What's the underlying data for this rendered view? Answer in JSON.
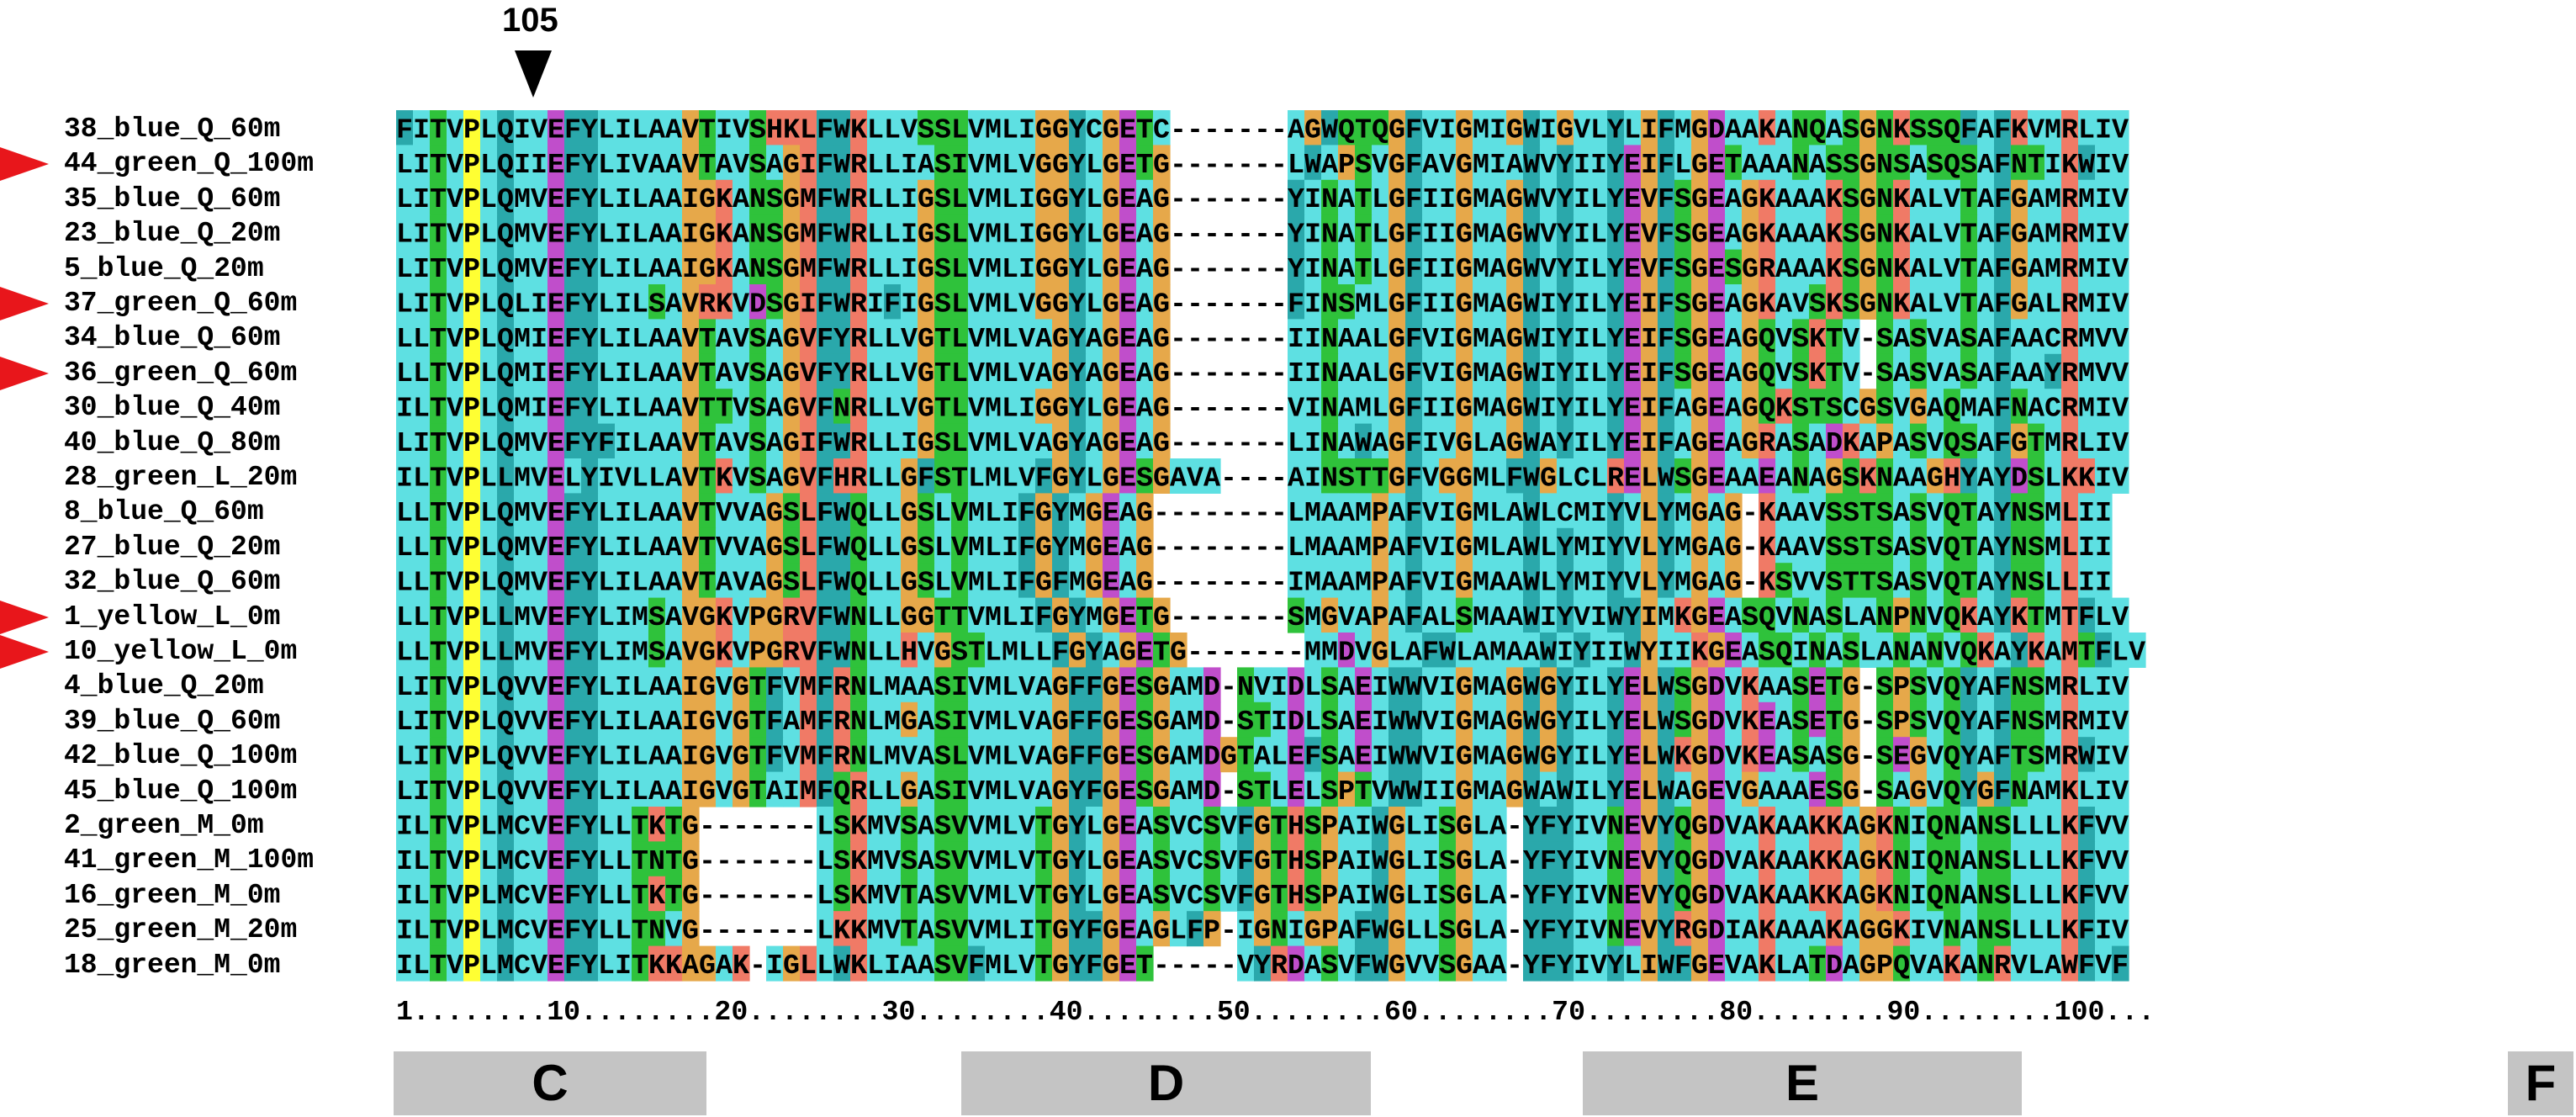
{
  "marker": {
    "position_label": "105"
  },
  "alignment": {
    "colors": {
      "cyan": "#5ee0e2",
      "teal": "#2aa8ab",
      "orange": "#e6a84a",
      "green": "#2fc23b",
      "yellow": "#ffff33",
      "magenta": "#c04ecb",
      "salmon": "#f07a66"
    },
    "rows": [
      {
        "name": "38_blue_Q_60m",
        "flagged": false,
        "seq": "FITVPLQIVEFYLILAAVTIVSHKLFWKLLVSSLVMLIGGYCGETC-------AGWQTQGFVIGMIGWIGVLYLIFMGDAAKANQASGNKSSQFAFKVMRLIV"
      },
      {
        "name": "44_green_Q_100m",
        "flagged": true,
        "seq": "LITVPLQIIEFYLIVAAVTAVSAGIFWRLLIASIVMLVGGYLGETG-------LWAPSVGFAVGMIAWVYIIYEIFLGETAAANASSGNSASQSAFNTIKWIV"
      },
      {
        "name": "35_blue_Q_60m",
        "flagged": false,
        "seq": "LITVPLQMVEFYLILAAIGKANSGMFWRLLIGSLVMLIGGYLGEAG-------YINATLGFIIGMAGWVYILYEVFSGEAGKAAAKSGNKALVTAFGAMRMIV"
      },
      {
        "name": "23_blue_Q_20m",
        "flagged": false,
        "seq": "LITVPLQMVEFYLILAAIGKANSGMFWRLLIGSLVMLIGGYLGEAG-------YINATLGFIIGMAGWVYILYEVFSGEAGKAAAKSGNKALVTAFGAMRMIV"
      },
      {
        "name": "5_blue_Q_20m",
        "flagged": false,
        "seq": "LITVPLQMVEFYLILAAIGKANSGMFWRLLIGSLVMLIGGYLGEAG-------YINATLGFIIGMAGWVYILYEVFSGESGRAAAKSGNKALVTAFGAMRMIV"
      },
      {
        "name": "37_green_Q_60m",
        "flagged": true,
        "seq": "LITVPLQLIEFYLILSAVRKVDSGIFWRIFIGSLVMLVGGYLGEAG-------FINSMLGFIIGMAGWIYILYEIFSGEAGKAVSKSGNKALVTAFGALRMIV"
      },
      {
        "name": "34_blue_Q_60m",
        "flagged": false,
        "seq": "LLTVPLQMIEFYLILAAVTAVSAGVFYRLLVGTLVMLVAGYAGEAG-------IINAALGFVIGMAGWIYILYEIFSGEAGQVSKTV-SASVASAFAACRMVV"
      },
      {
        "name": "36_green_Q_60m",
        "flagged": true,
        "seq": "LLTVPLQMIEFYLILAAVTAVSAGVFYRLLVGTLVMLVAGYAGEAG-------IINAALGFVIGMAGWIYILYEIFSGEAGQVSKTV-SASVASAFAAYRMVV"
      },
      {
        "name": "30_blue_Q_40m",
        "flagged": false,
        "seq": "ILTVPLQMIEFYLILAAVTTVSAGVFNRLLVGTLVMLIGGYLGEAG-------VINAMLGFIIGMAGWIYILYEIFAGEAGQKSTSCGSVGAQMAFNACRMIV"
      },
      {
        "name": "40_blue_Q_80m",
        "flagged": false,
        "seq": "LITVPLQMVEFYFILAAVTAVSAGIFWRLLIGSLVMLVAGYAGEAG-------LINAWAGFIVGLAGWAYILYEIFAGEAGRASADKAPASVQSAFGTMRLIV"
      },
      {
        "name": "28_green_L_20m",
        "flagged": false,
        "seq": "ILTVPLLMVELYIVLLAVTKVSAGVFHRLLGFSTLMLVFGYLGESGAVA----AINSTTGFVGGMLFWGLCLRELWSGEAAEANAGSKNAAGHYAYDSLKKIV"
      },
      {
        "name": "8_blue_Q_60m",
        "flagged": false,
        "seq": "LLTVPLQMVEFYLILAAVTVVAGSLFWQLLGSLVMLIFGYMGEAG--------LMAAMPAFVIGMLAWLCMIYVLYMGAG-KAAVSSTSASVQTAYNSMLII"
      },
      {
        "name": "27_blue_Q_20m",
        "flagged": false,
        "seq": "LLTVPLQMVEFYLILAAVTVVAGSLFWQLLGSLVMLIFGYMGEAG--------LMAAMPAFVIGMLAWLYMIYVLYMGAG-KAAVSSTSASVQTAYNSMLII"
      },
      {
        "name": "32_blue_Q_60m",
        "flagged": false,
        "seq": "LLTVPLQMVEFYLILAAVTAVAGSLFWQLLGSLVMLIFGFMGEAG--------IMAAMPAFVIGMAAWLYMIYVLYMGAG-KSVVSTTSASVQTAYNSLLII"
      },
      {
        "name": "1_yellow_L_0m",
        "flagged": true,
        "seq": "LLTVPLLMVEFYLIMSAVGKVPGRVFWNLLGGTTVMLIFGYMGETG-------SMGVAPAFALSMAAWIYVIWYIMKGEASQVNASLANPNVQKAYKTMTFLV"
      },
      {
        "name": "10_yellow_L_0m",
        "flagged": true,
        "seq": "LLTVPLLMVEFYLIMSAVGKVPGRVFWNLLHVGSTLMLLFGYAGETG-------MMDVGLAFWLAMAAWIYIIWYIIKGEASQINASLANANVQKAYKAMTFLV"
      },
      {
        "name": "4_blue_Q_20m",
        "flagged": false,
        "seq": "LITVPLQVVEFYLILAAIGVGTFVMFRNLMAASIVMLVAGFFGESGAMD-NVIDLSAEIWWVIGMAGWGYILYELWSGDVKAASETG-SPSVQYAFNSMRLIV"
      },
      {
        "name": "39_blue_Q_60m",
        "flagged": false,
        "seq": "LITVPLQVVEFYLILAAIGVGTFAMFRNLMGASIVMLVAGFFGESGAMD-STIDLSAEIWWVIGMAGWGYILYELWSGDVKEASETG-SPSVQYAFNSMRMIV"
      },
      {
        "name": "42_blue_Q_100m",
        "flagged": false,
        "seq": "LITVPLQVVEFYLILAAIGVGTFVMFRNLMVASLVMLVAGFFGESGAMDGTALEFSAEIWWVIGMAGWGYILYELWKGDVKEASASG-SEGVQYAFTSMRWIV"
      },
      {
        "name": "45_blue_Q_100m",
        "flagged": false,
        "seq": "LITVPLQVVEFYLILAAIGVGTAIMFQRLLGASIVMLVAGYFGESGAMD-STLELSPTVWWIIGMAGWAWILYELWAGEVGAAAESG-SAGVQYGFNAMKLIV"
      },
      {
        "name": "2_green_M_0m",
        "flagged": false,
        "seq": "ILTVPLMCVEFYLLTKTG-------LSKMVSASVVMLVTGYLGEASVCSVFGTHSPAIWGLISGLA-YFYIVNEVYQGDVAKAAKKAGKNIQNANSLLLKFVV"
      },
      {
        "name": "41_green_M_100m",
        "flagged": false,
        "seq": "ILTVPLMCVEFYLLTNTG-------LSKMVSASVVMLVTGYLGEASVCSVFGTHSPAIWGLISGLA-YFYIVNEVYQGDVAKAAKKAGKNIQNANSLLLKFVV"
      },
      {
        "name": "16_green_M_0m",
        "flagged": false,
        "seq": "ILTVPLMCVEFYLLTKTG-------LSKMVTASVVMLVTGYLGEASVCSVFGTHSPAIWGLISGLA-YFYIVNEVYQGDVAKAAKKAGKNIQNANSLLLKFVV"
      },
      {
        "name": "25_green_M_20m",
        "flagged": false,
        "seq": "ILTVPLMCVEFYLLTNVG-------LKKMVTASVVMLITGYFGEAGLFP-IGNIGPAFWGLLSGLA-YFYIVNEVYRGDIAKAAAKAGGKIVNANSLLLKFIV"
      },
      {
        "name": "18_green_M_0m",
        "flagged": false,
        "seq": "ILTVPLMCVEFYLITKKAGAK-IGLLWKLIAASVFMLVTGYFGET-----VYRDASVFWGVVSGAA-YFYIVYLIWFGEVAKLATDAGPQVAKANRVLAWFVF"
      }
    ],
    "ruler": "1........10........20........30........40........50........60........70........80........90........100..."
  },
  "regions": [
    {
      "label": "C"
    },
    {
      "label": "D"
    },
    {
      "label": "E"
    },
    {
      "label": "F"
    }
  ]
}
